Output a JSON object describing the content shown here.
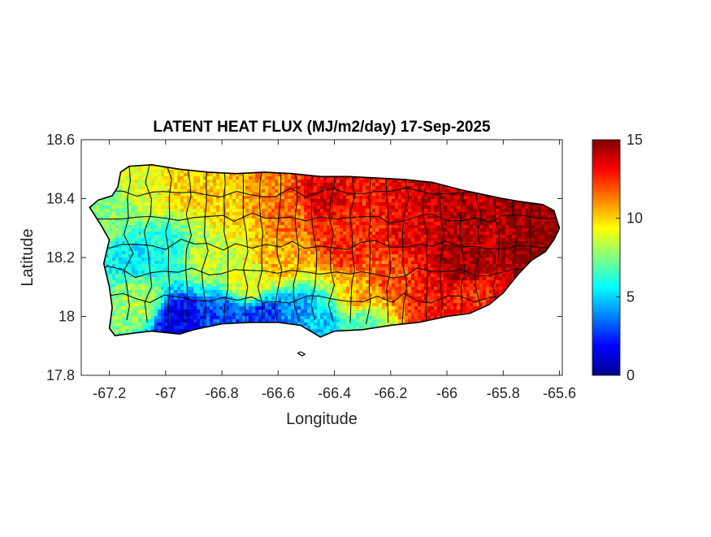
{
  "figure": {
    "title": "LATENT HEAT FLUX (MJ/m2/day) 17-Sep-2025",
    "xlabel": "Longitude",
    "ylabel": "Latitude"
  },
  "map": {
    "xlim": [
      -67.3,
      -65.59
    ],
    "ylim": [
      17.8,
      18.6
    ],
    "xticks": [
      -67.2,
      -67,
      -66.8,
      -66.6,
      -66.4,
      -66.2,
      -66,
      -65.8,
      -65.6
    ],
    "xtick_labels": [
      "-67.2",
      "-67",
      "-66.8",
      "-66.6",
      "-66.4",
      "-66.2",
      "-66",
      "-65.8",
      "-65.6"
    ],
    "yticks": [
      17.8,
      18,
      18.2,
      18.4,
      18.6
    ],
    "ytick_labels": [
      "17.8",
      "18",
      "18.2",
      "18.4",
      "18.6"
    ],
    "grid": false,
    "colormap": "jet",
    "outline": [
      [
        -67.27,
        18.37
      ],
      [
        -67.24,
        18.395
      ],
      [
        -67.19,
        18.41
      ],
      [
        -67.17,
        18.44
      ],
      [
        -67.16,
        18.49
      ],
      [
        -67.13,
        18.51
      ],
      [
        -67.05,
        18.515
      ],
      [
        -66.95,
        18.5
      ],
      [
        -66.85,
        18.49
      ],
      [
        -66.75,
        18.485
      ],
      [
        -66.65,
        18.49
      ],
      [
        -66.55,
        18.485
      ],
      [
        -66.45,
        18.475
      ],
      [
        -66.35,
        18.475
      ],
      [
        -66.25,
        18.47
      ],
      [
        -66.15,
        18.465
      ],
      [
        -66.05,
        18.455
      ],
      [
        -65.95,
        18.43
      ],
      [
        -65.85,
        18.41
      ],
      [
        -65.8,
        18.4
      ],
      [
        -65.74,
        18.39
      ],
      [
        -65.66,
        18.38
      ],
      [
        -65.62,
        18.36
      ],
      [
        -65.6,
        18.3
      ],
      [
        -65.62,
        18.26
      ],
      [
        -65.65,
        18.22
      ],
      [
        -65.7,
        18.19
      ],
      [
        -65.75,
        18.14
      ],
      [
        -65.8,
        18.08
      ],
      [
        -65.85,
        18.04
      ],
      [
        -65.92,
        18.01
      ],
      [
        -66.0,
        18.0
      ],
      [
        -66.1,
        17.98
      ],
      [
        -66.2,
        17.97
      ],
      [
        -66.3,
        17.955
      ],
      [
        -66.4,
        17.95
      ],
      [
        -66.45,
        17.93
      ],
      [
        -66.52,
        17.97
      ],
      [
        -66.6,
        17.98
      ],
      [
        -66.7,
        17.98
      ],
      [
        -66.8,
        17.975
      ],
      [
        -66.9,
        17.955
      ],
      [
        -66.95,
        17.94
      ],
      [
        -67.05,
        17.95
      ],
      [
        -67.1,
        17.945
      ],
      [
        -67.18,
        17.935
      ],
      [
        -67.2,
        17.96
      ],
      [
        -67.19,
        18.03
      ],
      [
        -67.2,
        18.1
      ],
      [
        -67.22,
        18.18
      ],
      [
        -67.2,
        18.26
      ],
      [
        -67.23,
        18.31
      ],
      [
        -67.27,
        18.37
      ]
    ],
    "offshore_cays": [
      [
        [
          -66.53,
          17.875
        ],
        [
          -66.52,
          17.88
        ],
        [
          -66.505,
          17.872
        ],
        [
          -66.515,
          17.866
        ],
        [
          -66.53,
          17.875
        ]
      ]
    ]
  },
  "chart_data": {
    "type": "heatmap",
    "title": "LATENT HEAT FLUX (MJ/m2/day) 17-Sep-2025",
    "xlabel": "Longitude",
    "ylabel": "Latitude",
    "xlim": [
      -67.3,
      -65.59
    ],
    "ylim": [
      17.8,
      18.6
    ],
    "clim": [
      0,
      15
    ],
    "colorbar_ticks": [
      0,
      5,
      10,
      15
    ],
    "colorbar_tick_labels": [
      "0",
      "5",
      "10",
      "15"
    ],
    "grid": false,
    "field_anchors": [
      {
        "lon": -67.2,
        "lat": 18.35,
        "value": 7.5
      },
      {
        "lon": -67.12,
        "lat": 18.2,
        "value": 5.5
      },
      {
        "lon": -67.0,
        "lat": 18.22,
        "value": 6.0
      },
      {
        "lon": -67.1,
        "lat": 18.05,
        "value": 8.0
      },
      {
        "lon": -67.05,
        "lat": 18.45,
        "value": 9.0
      },
      {
        "lon": -66.95,
        "lat": 18.45,
        "value": 10.0
      },
      {
        "lon": -66.85,
        "lat": 18.2,
        "value": 8.5
      },
      {
        "lon": -66.8,
        "lat": 18.4,
        "value": 10.0
      },
      {
        "lon": -66.7,
        "lat": 18.12,
        "value": 9.0
      },
      {
        "lon": -66.95,
        "lat": 17.98,
        "value": 1.5
      },
      {
        "lon": -66.8,
        "lat": 17.99,
        "value": 3.0
      },
      {
        "lon": -66.65,
        "lat": 17.99,
        "value": 2.5
      },
      {
        "lon": -66.55,
        "lat": 17.99,
        "value": 4.0
      },
      {
        "lon": -66.45,
        "lat": 17.97,
        "value": 5.0
      },
      {
        "lon": -66.3,
        "lat": 17.99,
        "value": 7.0
      },
      {
        "lon": -66.55,
        "lat": 18.35,
        "value": 11.5
      },
      {
        "lon": -66.45,
        "lat": 18.4,
        "value": 13.5
      },
      {
        "lon": -66.35,
        "lat": 18.25,
        "value": 12.5
      },
      {
        "lon": -66.2,
        "lat": 18.12,
        "value": 12.0
      },
      {
        "lon": -66.3,
        "lat": 18.06,
        "value": 10.5
      },
      {
        "lon": -66.1,
        "lat": 18.3,
        "value": 13.5
      },
      {
        "lon": -66.0,
        "lat": 18.4,
        "value": 14.0
      },
      {
        "lon": -65.95,
        "lat": 18.18,
        "value": 14.5
      },
      {
        "lon": -65.85,
        "lat": 18.28,
        "value": 14.0
      },
      {
        "lon": -65.75,
        "lat": 18.32,
        "value": 14.5
      },
      {
        "lon": -65.7,
        "lat": 18.25,
        "value": 15.0
      },
      {
        "lon": -65.9,
        "lat": 18.06,
        "value": 12.5
      },
      {
        "lon": -66.05,
        "lat": 18.05,
        "value": 13.0
      },
      {
        "lon": -66.6,
        "lat": 18.2,
        "value": 10.5
      },
      {
        "lon": -66.65,
        "lat": 18.45,
        "value": 11.0
      }
    ]
  }
}
